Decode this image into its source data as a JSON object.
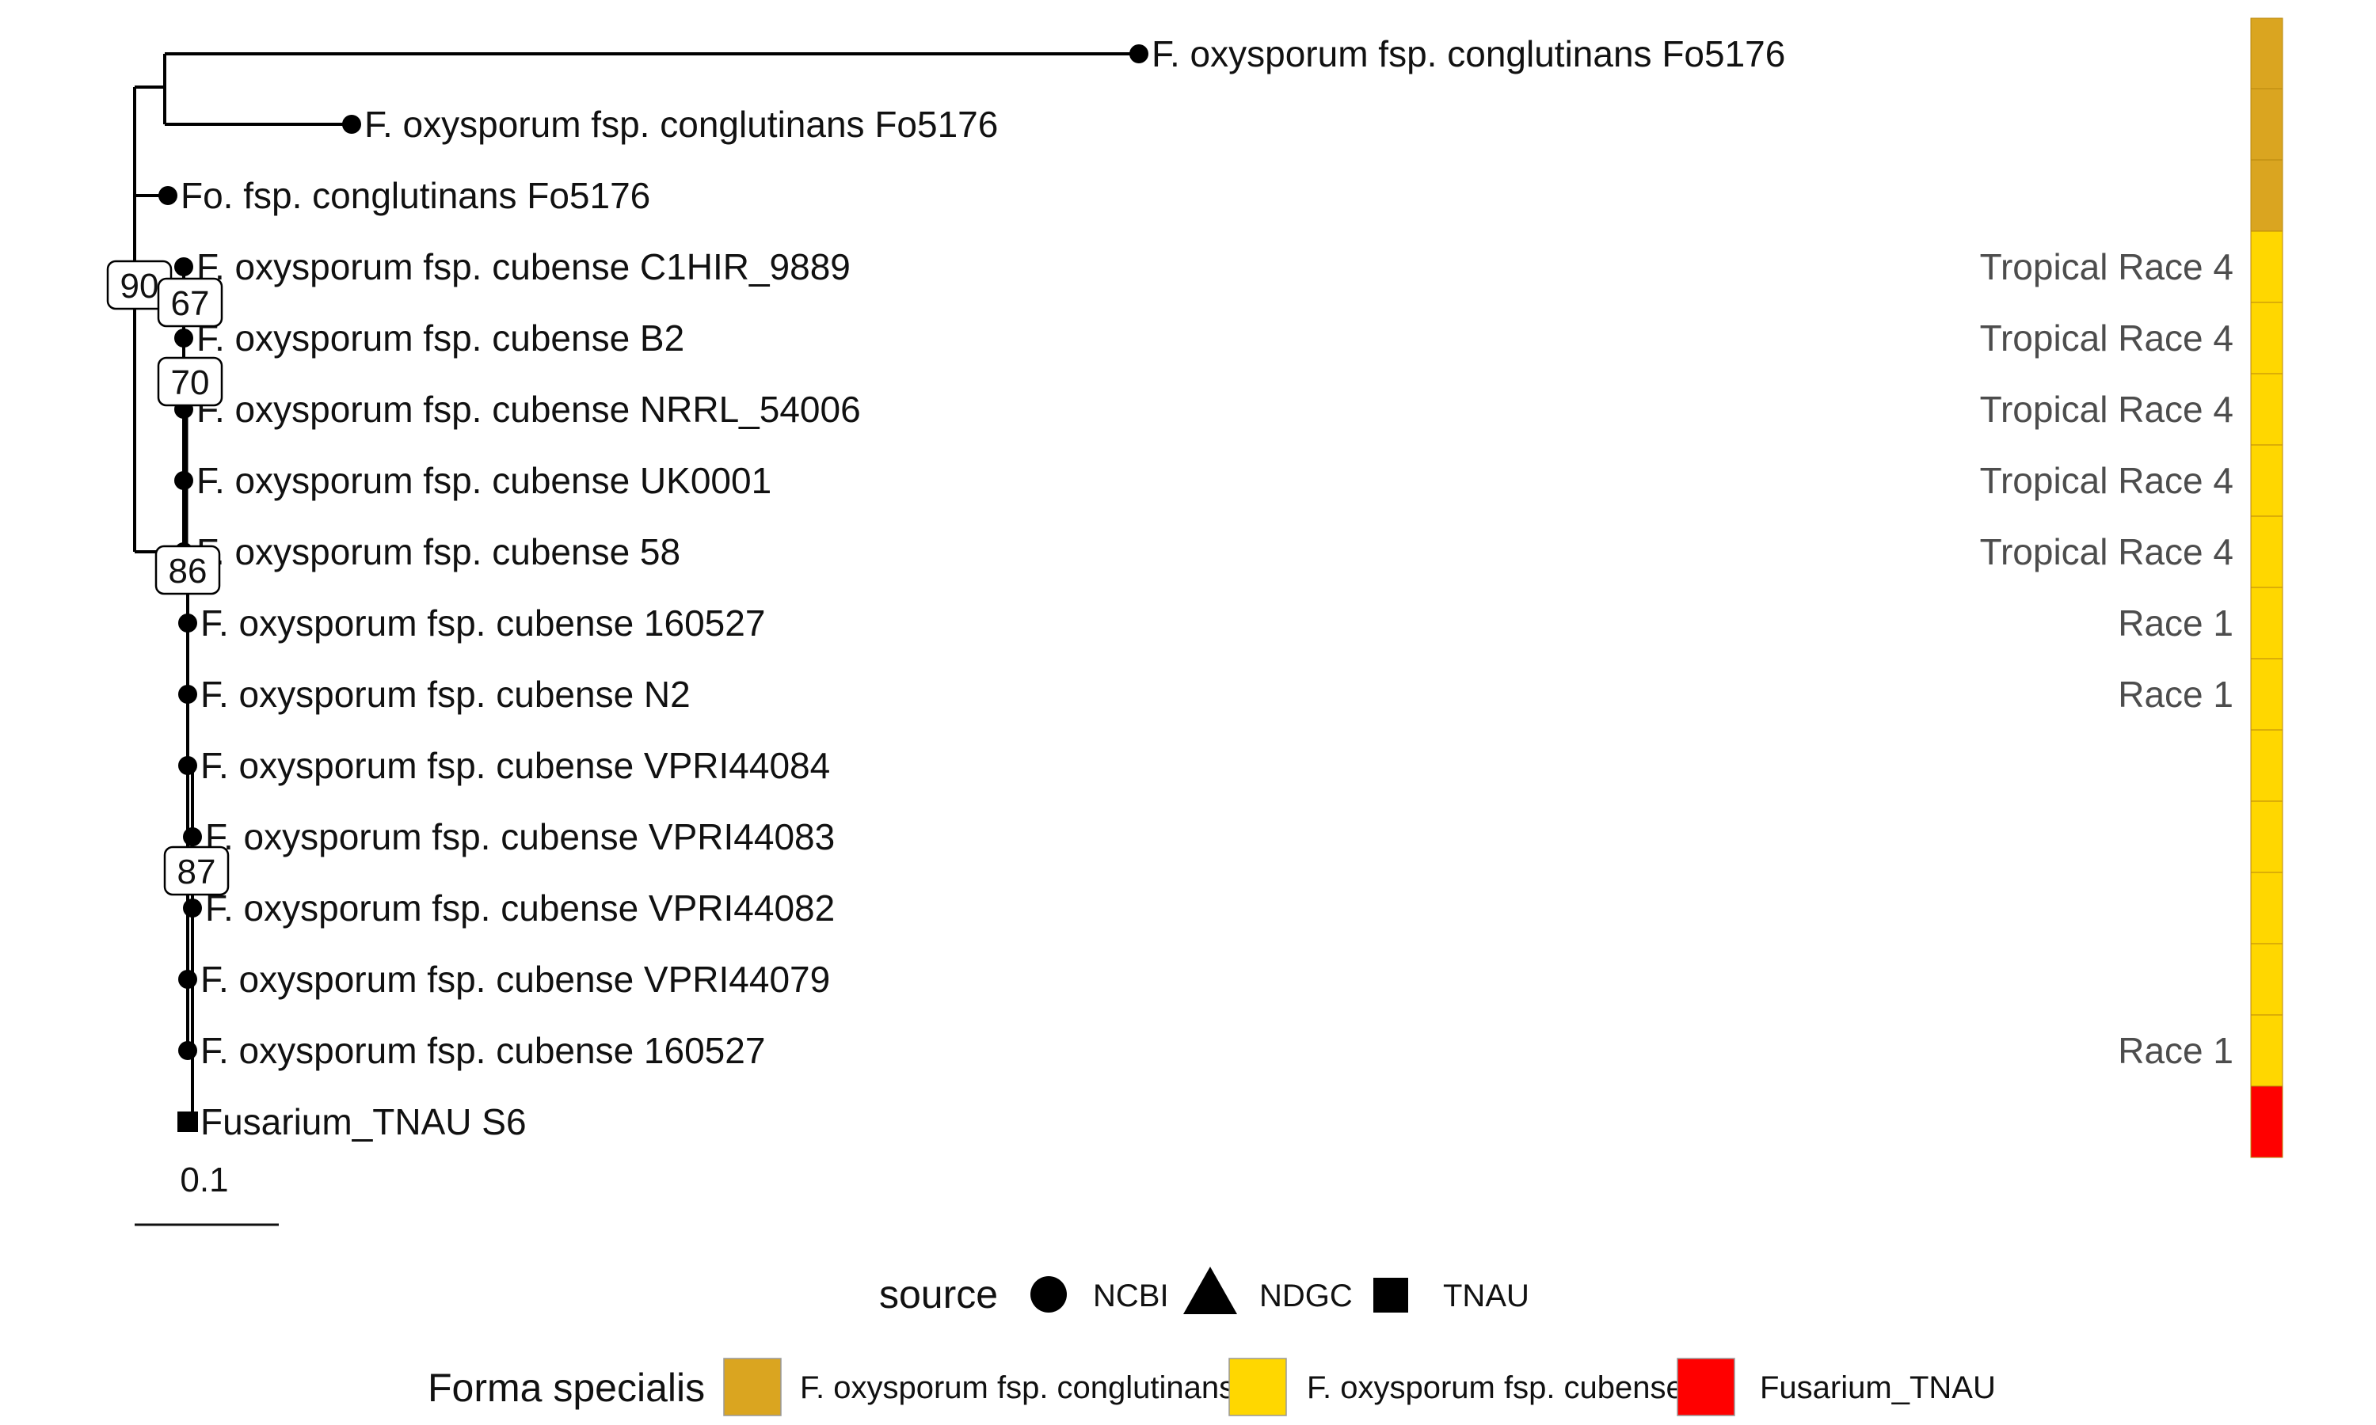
{
  "tree": {
    "tips": [
      {
        "label": "F. oxysporum fsp. conglutinans Fo5176",
        "source": "NCBI",
        "forma": "F. oxysporum fsp. conglutinans",
        "race": ""
      },
      {
        "label": "F. oxysporum fsp. conglutinans Fo5176",
        "source": "NCBI",
        "forma": "F. oxysporum fsp. conglutinans",
        "race": ""
      },
      {
        "label": "Fo. fsp. conglutinans Fo5176",
        "source": "NCBI",
        "forma": "F. oxysporum fsp. conglutinans",
        "race": ""
      },
      {
        "label": "F. oxysporum fsp. cubense C1HIR_9889",
        "source": "NCBI",
        "forma": "F. oxysporum fsp. cubense",
        "race": "Tropical Race 4"
      },
      {
        "label": "F. oxysporum fsp. cubense B2",
        "source": "NCBI",
        "forma": "F. oxysporum fsp. cubense",
        "race": "Tropical Race 4"
      },
      {
        "label": "F. oxysporum fsp. cubense NRRL_54006",
        "source": "NCBI",
        "forma": "F. oxysporum fsp. cubense",
        "race": "Tropical Race 4"
      },
      {
        "label": "F. oxysporum fsp. cubense UK0001",
        "source": "NCBI",
        "forma": "F. oxysporum fsp. cubense",
        "race": "Tropical Race 4"
      },
      {
        "label": "F. oxysporum fsp. cubense 58",
        "source": "NCBI",
        "forma": "F. oxysporum fsp. cubense",
        "race": "Tropical Race 4"
      },
      {
        "label": "F. oxysporum fsp. cubense 160527",
        "source": "NCBI",
        "forma": "F. oxysporum fsp. cubense",
        "race": "Race 1"
      },
      {
        "label": "F. oxysporum fsp. cubense N2",
        "source": "NCBI",
        "forma": "F. oxysporum fsp. cubense",
        "race": "Race 1"
      },
      {
        "label": "F. oxysporum fsp. cubense VPRI44084",
        "source": "NCBI",
        "forma": "F. oxysporum fsp. cubense",
        "race": ""
      },
      {
        "label": "F. oxysporum fsp. cubense VPRI44083",
        "source": "NCBI",
        "forma": "F. oxysporum fsp. cubense",
        "race": ""
      },
      {
        "label": "F. oxysporum fsp. cubense VPRI44082",
        "source": "NCBI",
        "forma": "F. oxysporum fsp. cubense",
        "race": ""
      },
      {
        "label": "F. oxysporum fsp. cubense VPRI44079",
        "source": "NCBI",
        "forma": "F. oxysporum fsp. cubense",
        "race": ""
      },
      {
        "label": "F. oxysporum fsp. cubense 160527",
        "source": "NCBI",
        "forma": "F. oxysporum fsp. cubense",
        "race": "Race 1"
      },
      {
        "label": "Fusarium_TNAU S6",
        "source": "TNAU",
        "forma": "Fusarium_TNAU",
        "race": ""
      }
    ],
    "bootstrap": [
      "90",
      "67",
      "70",
      "86",
      "87"
    ],
    "scale_label": "0.1"
  },
  "legend": {
    "source": {
      "title": "source",
      "items": [
        {
          "label": "NCBI",
          "shape": "circle"
        },
        {
          "label": "NDGC",
          "shape": "triangle"
        },
        {
          "label": "TNAU",
          "shape": "square"
        }
      ]
    },
    "forma": {
      "title": "Forma specialis",
      "items": [
        {
          "label": "F. oxysporum fsp. conglutinans",
          "color": "#DAA520"
        },
        {
          "label": "F. oxysporum fsp. cubense",
          "color": "#FFD700"
        },
        {
          "label": "Fusarium_TNAU",
          "color": "#FF0000"
        }
      ]
    }
  }
}
